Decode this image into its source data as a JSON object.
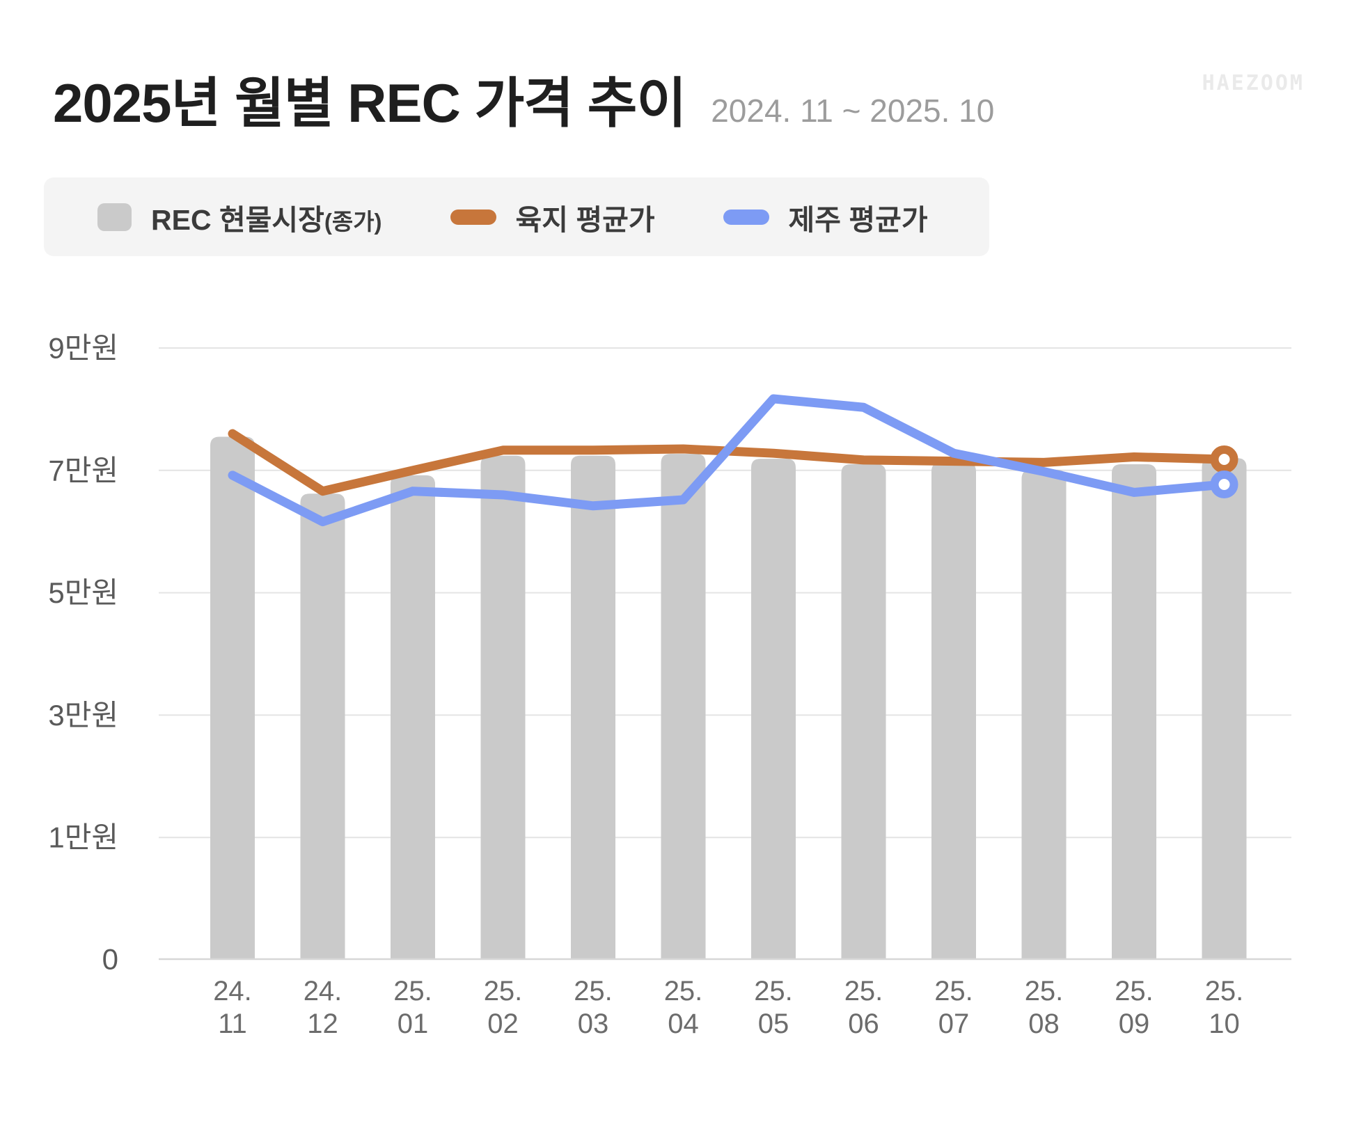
{
  "header": {
    "title": "2025년 월별 REC 가격 추이",
    "subtitle": "2024. 11 ~ 2025. 10",
    "watermark": "HAEZOOM"
  },
  "legend": {
    "items": [
      {
        "label": "REC 현물시장",
        "label_suffix": "(종가)",
        "swatch": "bar",
        "color": "#cacaca"
      },
      {
        "label": "육지 평균가",
        "label_suffix": "",
        "swatch": "line",
        "color": "#c7763b"
      },
      {
        "label": "제주 평균가",
        "label_suffix": "",
        "swatch": "line",
        "color": "#7d9bf4"
      }
    ]
  },
  "chart_data": {
    "type": "combo-bar-line",
    "title": "2025년 월별 REC 가격 추이",
    "subtitle_period": "2024. 11 ~ 2025. 10",
    "unit": "만원",
    "categories": [
      [
        "24.",
        "11"
      ],
      [
        "24.",
        "12"
      ],
      [
        "25.",
        "01"
      ],
      [
        "25.",
        "02"
      ],
      [
        "25.",
        "03"
      ],
      [
        "25.",
        "04"
      ],
      [
        "25.",
        "05"
      ],
      [
        "25.",
        "06"
      ],
      [
        "25.",
        "07"
      ],
      [
        "25.",
        "08"
      ],
      [
        "25.",
        "09"
      ],
      [
        "25.",
        "10"
      ]
    ],
    "y_ticks": [
      {
        "value": 9,
        "label": "9만원"
      },
      {
        "value": 7,
        "label": "7만원"
      },
      {
        "value": 5,
        "label": "5만원"
      },
      {
        "value": 3,
        "label": "3만원"
      },
      {
        "value": 1,
        "label": "1만원"
      },
      {
        "value": 0,
        "label": "0"
      }
    ],
    "series": [
      {
        "name": "REC 현물시장(종가)",
        "type": "bar",
        "color": "#cacaca",
        "values": [
          7.55,
          6.62,
          6.92,
          7.24,
          7.24,
          7.27,
          7.19,
          7.1,
          7.13,
          7.01,
          7.1,
          7.2
        ]
      },
      {
        "name": "육지 평균가",
        "type": "line",
        "color": "#c7763b",
        "end_marker": true,
        "values": [
          7.6,
          6.66,
          7.0,
          7.33,
          7.33,
          7.35,
          7.28,
          7.17,
          7.15,
          7.13,
          7.22,
          7.18
        ]
      },
      {
        "name": "제주 평균가",
        "type": "line",
        "color": "#7d9bf4",
        "end_marker": true,
        "values": [
          6.92,
          6.16,
          6.66,
          6.6,
          6.42,
          6.52,
          8.17,
          8.03,
          7.28,
          6.98,
          6.64,
          6.77
        ]
      }
    ],
    "ylim": [
      0,
      9.6
    ],
    "grid": "horizontal",
    "legend_position": "top-left",
    "y_axis_note": "bottom segment 0→1만원 rendered at double scale (gridlines evenly spaced for 9,7,5,3,1,0)"
  }
}
